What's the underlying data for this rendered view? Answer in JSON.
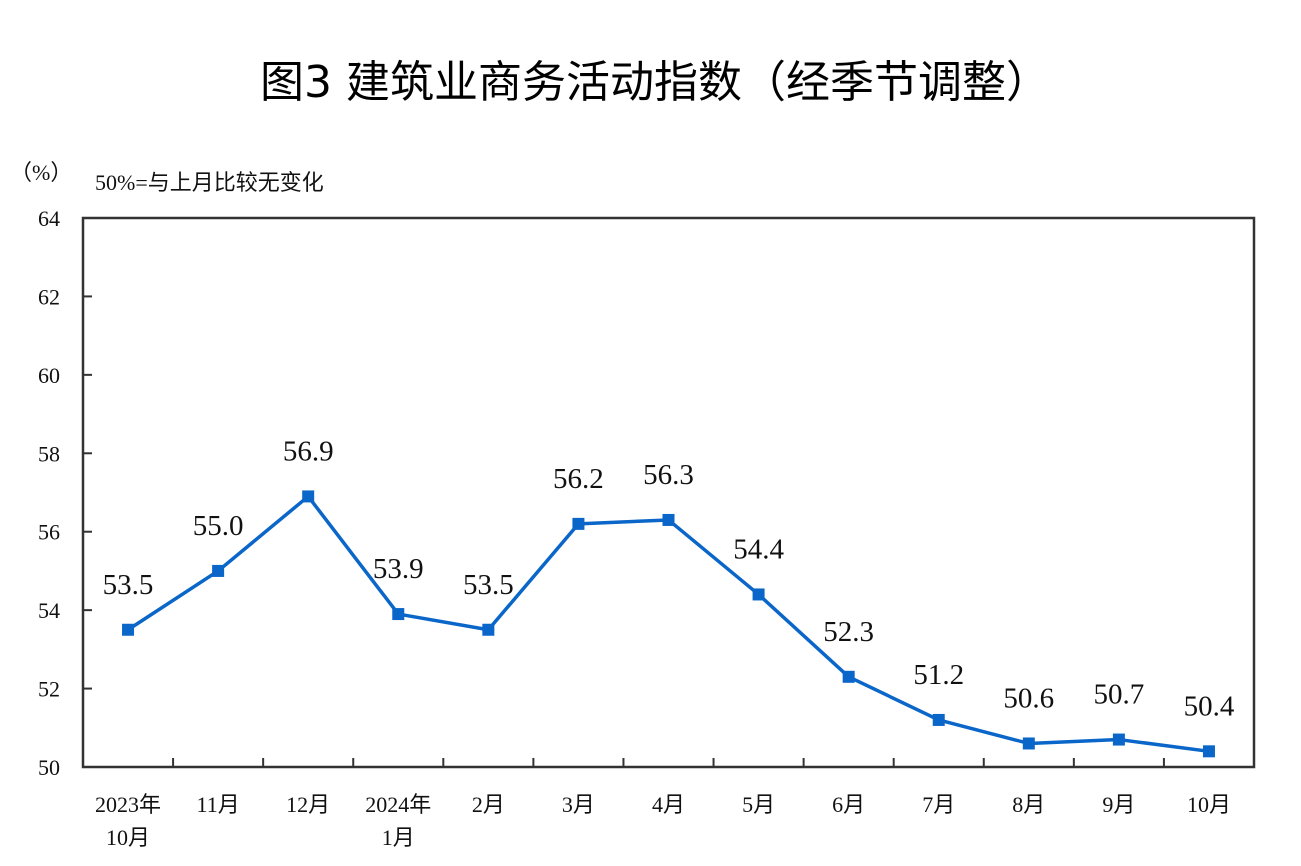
{
  "chart_data": {
    "type": "line",
    "title": "图3  建筑业商务活动指数（经季节调整）",
    "ylabel": "（%）",
    "note": "50%=与上月比较无变化",
    "categories": [
      [
        "2023年",
        "10月"
      ],
      [
        "11月"
      ],
      [
        "12月"
      ],
      [
        "2024年",
        "1月"
      ],
      [
        "2月"
      ],
      [
        "3月"
      ],
      [
        "4月"
      ],
      [
        "5月"
      ],
      [
        "6月"
      ],
      [
        "7月"
      ],
      [
        "8月"
      ],
      [
        "9月"
      ],
      [
        "10月"
      ]
    ],
    "series": [
      {
        "values": [
          53.5,
          55.0,
          56.9,
          53.9,
          53.5,
          56.2,
          56.3,
          54.4,
          52.3,
          51.2,
          50.6,
          50.7,
          50.4
        ],
        "labels": [
          "53.5",
          "55.0",
          "56.9",
          "53.9",
          "53.5",
          "56.2",
          "56.3",
          "54.4",
          "52.3",
          "51.2",
          "50.6",
          "50.7",
          "50.4"
        ],
        "color": "#0a66c8",
        "marker": "square"
      }
    ],
    "ylim": [
      50,
      64
    ],
    "yticks": [
      "50",
      "52",
      "54",
      "56",
      "58",
      "60",
      "62",
      "64"
    ],
    "grid": false,
    "legend": "none"
  }
}
